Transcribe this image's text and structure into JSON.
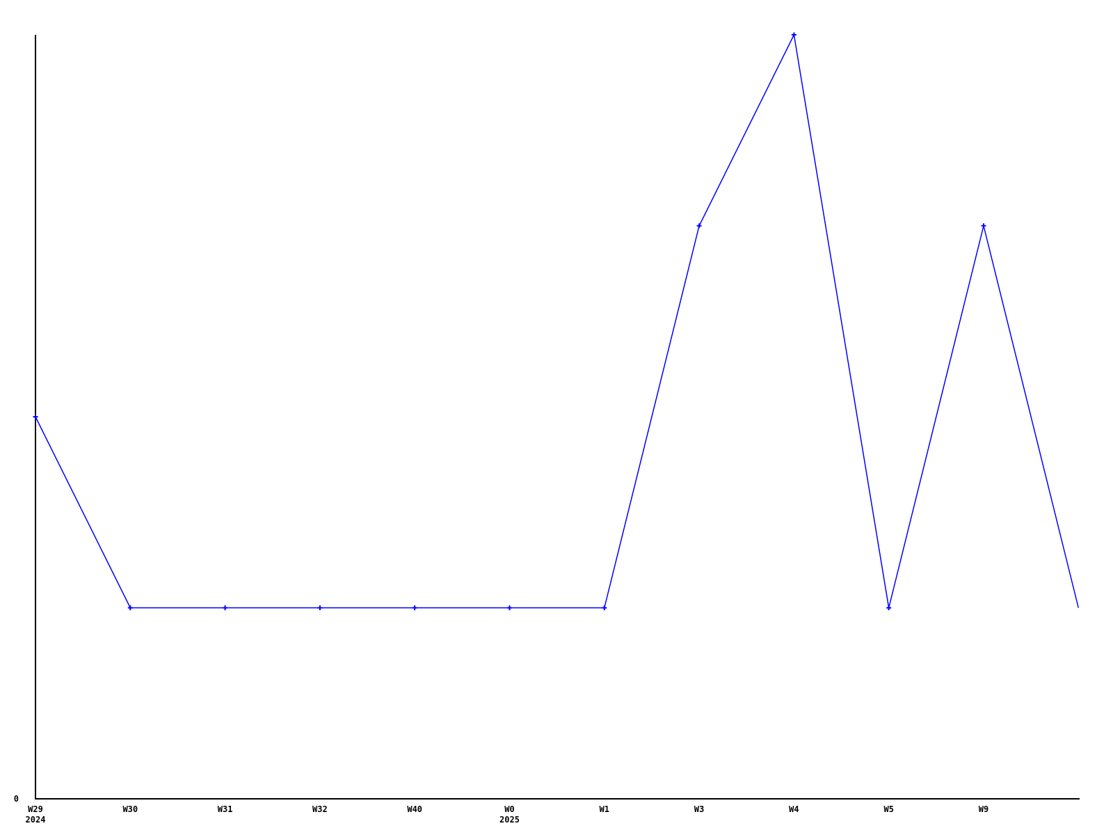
{
  "page": {
    "background_color": "#ffffff"
  },
  "chart_data": {
    "type": "line",
    "title": "",
    "xlabel": "",
    "ylabel": "",
    "grid": false,
    "legend_position": "none",
    "line_color": "#0000ff",
    "marker": "plus",
    "marker_color": "#0000ff",
    "axis_color": "#000000",
    "ylim": [
      0,
      4
    ],
    "y_tick_labels": [
      "0"
    ],
    "points": [
      {
        "x_label": "W29",
        "year_label": "2024",
        "value": 2,
        "marker": true
      },
      {
        "x_label": "W30",
        "year_label": "",
        "value": 1,
        "marker": true
      },
      {
        "x_label": "W31",
        "year_label": "",
        "value": 1,
        "marker": true
      },
      {
        "x_label": "W32",
        "year_label": "",
        "value": 1,
        "marker": true
      },
      {
        "x_label": "W40",
        "year_label": "",
        "value": 1,
        "marker": true
      },
      {
        "x_label": "W0",
        "year_label": "2025",
        "value": 1,
        "marker": true
      },
      {
        "x_label": "W1",
        "year_label": "",
        "value": 1,
        "marker": true
      },
      {
        "x_label": "W3",
        "year_label": "",
        "value": 3,
        "marker": true
      },
      {
        "x_label": "W4",
        "year_label": "",
        "value": 4,
        "marker": true
      },
      {
        "x_label": "W5",
        "year_label": "",
        "value": 1,
        "marker": true
      },
      {
        "x_label": "W9",
        "year_label": "",
        "value": 3,
        "marker": true
      },
      {
        "x_label": "",
        "year_label": "",
        "value": 1,
        "marker": false
      }
    ]
  }
}
